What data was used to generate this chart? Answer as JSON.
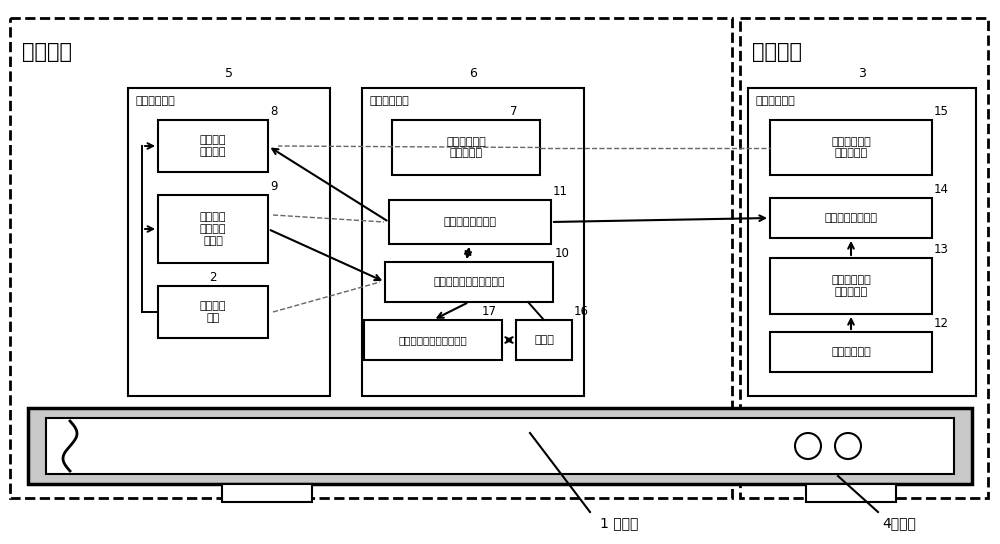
{
  "fig_width": 10.0,
  "fig_height": 5.44,
  "title_left": "体外部分",
  "title_right": "体内部分",
  "unit5_title": "体外监测单元",
  "unit6_title": "信号传输单元",
  "unit3_title": "体内监测单元",
  "box8_lines": [
    "第一信号",
    "传输模块"
  ],
  "box9_lines": [
    "第一信号",
    "转换与调",
    "理模块"
  ],
  "box2_lines": [
    "第一传感",
    "模块"
  ],
  "box7_lines": [
    "第一电源及电",
    "源管理模块"
  ],
  "box11_lines": [
    "第三信号传输模块"
  ],
  "box10_lines": [
    "微处理器及信号传输模块"
  ],
  "box17_lines": [
    "云端数据处理与收集单元"
  ],
  "box16_lines": [
    "上位机"
  ],
  "box15_lines": [
    "第二电源及电",
    "源管理模块"
  ],
  "box14_lines": [
    "第二信号传输模块"
  ],
  "box13_lines": [
    "第二信号转换",
    "与调理模块"
  ],
  "box12_lines": [
    "第二传感模块"
  ],
  "bottom_label1": "1 引流管",
  "bottom_label4": "4引流孔"
}
